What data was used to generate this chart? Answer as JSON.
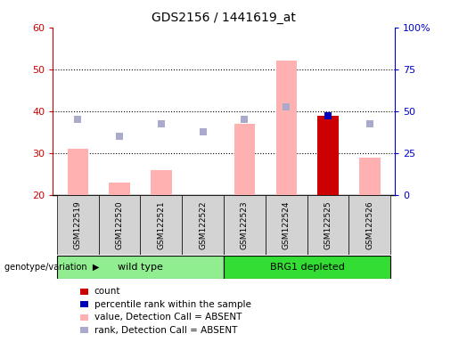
{
  "title": "GDS2156 / 1441619_at",
  "samples": [
    "GSM122519",
    "GSM122520",
    "GSM122521",
    "GSM122522",
    "GSM122523",
    "GSM122524",
    "GSM122525",
    "GSM122526"
  ],
  "bar_values": [
    31,
    23,
    26,
    20,
    37,
    52,
    39,
    29
  ],
  "bar_colors": [
    "#ffb0b0",
    "#ffb0b0",
    "#ffb0b0",
    "#ffb0b0",
    "#ffb0b0",
    "#ffb0b0",
    "#cc0000",
    "#ffb0b0"
  ],
  "rank_squares": [
    38,
    34,
    37,
    35,
    38,
    41,
    39,
    37
  ],
  "rank_colors": [
    "#aaaacc",
    "#aaaacc",
    "#aaaacc",
    "#aaaacc",
    "#aaaacc",
    "#aaaacc",
    "#0000bb",
    "#aaaacc"
  ],
  "ylim_left": [
    20,
    60
  ],
  "ylim_right": [
    0,
    100
  ],
  "yticks_left": [
    20,
    30,
    40,
    50,
    60
  ],
  "yticks_right": [
    0,
    25,
    50,
    75,
    100
  ],
  "yticklabels_right": [
    "0",
    "25",
    "50",
    "75",
    "100%"
  ],
  "left_axis_color": "#cc0000",
  "right_axis_color": "#0000cc",
  "wt_color": "#90ee90",
  "brg1_color": "#33dd33",
  "legend_items": [
    {
      "label": "count",
      "color": "#cc0000"
    },
    {
      "label": "percentile rank within the sample",
      "color": "#0000bb"
    },
    {
      "label": "value, Detection Call = ABSENT",
      "color": "#ffb0b0"
    },
    {
      "label": "rank, Detection Call = ABSENT",
      "color": "#aaaacc"
    }
  ],
  "bar_width": 0.5,
  "square_size": 40,
  "grid_lines": [
    30,
    40,
    50
  ],
  "wt_indices": [
    0,
    1,
    2,
    3
  ],
  "brg1_indices": [
    4,
    5,
    6,
    7
  ]
}
